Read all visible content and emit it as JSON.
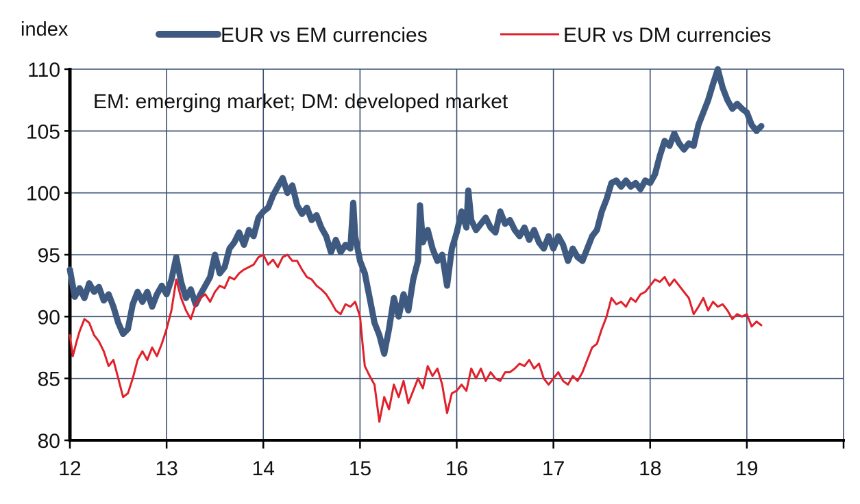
{
  "chart_data": {
    "type": "line",
    "ylabel": "index",
    "annotation": "EM: emerging market; DM: developed market",
    "ylim": [
      80,
      110
    ],
    "xlim": [
      2012.0,
      2020.0
    ],
    "y_ticks": [
      80,
      85,
      90,
      95,
      100,
      105,
      110
    ],
    "y_tick_labels": [
      "80",
      "85",
      "90",
      "95",
      "100",
      "105",
      "110"
    ],
    "x_ticks": [
      2012,
      2013,
      2014,
      2015,
      2016,
      2017,
      2018,
      2019
    ],
    "x_tick_labels": [
      "12",
      "13",
      "14",
      "15",
      "16",
      "17",
      "18",
      "19"
    ],
    "grid": true,
    "legend_position": "top",
    "series": [
      {
        "name": "EUR vs EM currencies",
        "color": "#3f5a80",
        "line_style": "thick",
        "points": [
          [
            2012.0,
            93.8
          ],
          [
            2012.05,
            91.6
          ],
          [
            2012.1,
            92.3
          ],
          [
            2012.15,
            91.5
          ],
          [
            2012.2,
            92.7
          ],
          [
            2012.25,
            92.0
          ],
          [
            2012.3,
            92.4
          ],
          [
            2012.35,
            91.3
          ],
          [
            2012.4,
            91.8
          ],
          [
            2012.45,
            90.8
          ],
          [
            2012.5,
            89.5
          ],
          [
            2012.55,
            88.6
          ],
          [
            2012.6,
            89.0
          ],
          [
            2012.65,
            91.0
          ],
          [
            2012.7,
            92.0
          ],
          [
            2012.75,
            91.2
          ],
          [
            2012.8,
            92.0
          ],
          [
            2012.85,
            90.8
          ],
          [
            2012.9,
            91.8
          ],
          [
            2012.95,
            92.5
          ],
          [
            2013.0,
            91.8
          ],
          [
            2013.05,
            93.0
          ],
          [
            2013.1,
            94.8
          ],
          [
            2013.15,
            92.8
          ],
          [
            2013.2,
            91.5
          ],
          [
            2013.25,
            92.2
          ],
          [
            2013.3,
            91.0
          ],
          [
            2013.35,
            91.8
          ],
          [
            2013.4,
            92.5
          ],
          [
            2013.45,
            93.2
          ],
          [
            2013.5,
            95.0
          ],
          [
            2013.55,
            93.5
          ],
          [
            2013.6,
            94.0
          ],
          [
            2013.65,
            95.5
          ],
          [
            2013.7,
            96.0
          ],
          [
            2013.75,
            96.8
          ],
          [
            2013.8,
            95.8
          ],
          [
            2013.85,
            97.0
          ],
          [
            2013.9,
            96.5
          ],
          [
            2013.95,
            98.0
          ],
          [
            2014.0,
            98.5
          ],
          [
            2014.05,
            98.8
          ],
          [
            2014.1,
            99.8
          ],
          [
            2014.15,
            100.5
          ],
          [
            2014.2,
            101.2
          ],
          [
            2014.25,
            100.0
          ],
          [
            2014.3,
            100.6
          ],
          [
            2014.35,
            99.0
          ],
          [
            2014.4,
            98.3
          ],
          [
            2014.45,
            98.8
          ],
          [
            2014.5,
            97.8
          ],
          [
            2014.55,
            98.2
          ],
          [
            2014.6,
            97.2
          ],
          [
            2014.65,
            96.5
          ],
          [
            2014.7,
            95.2
          ],
          [
            2014.75,
            96.2
          ],
          [
            2014.8,
            95.2
          ],
          [
            2014.85,
            95.8
          ],
          [
            2014.9,
            95.5
          ],
          [
            2014.93,
            99.2
          ],
          [
            2014.95,
            96.5
          ],
          [
            2015.0,
            94.5
          ],
          [
            2015.05,
            93.5
          ],
          [
            2015.1,
            91.5
          ],
          [
            2015.15,
            89.5
          ],
          [
            2015.2,
            88.5
          ],
          [
            2015.25,
            87.0
          ],
          [
            2015.3,
            89.0
          ],
          [
            2015.35,
            91.5
          ],
          [
            2015.4,
            90.0
          ],
          [
            2015.45,
            91.8
          ],
          [
            2015.5,
            90.5
          ],
          [
            2015.55,
            93.0
          ],
          [
            2015.6,
            94.5
          ],
          [
            2015.62,
            99.0
          ],
          [
            2015.65,
            96.0
          ],
          [
            2015.7,
            97.0
          ],
          [
            2015.75,
            95.5
          ],
          [
            2015.8,
            94.5
          ],
          [
            2015.85,
            95.0
          ],
          [
            2015.9,
            92.5
          ],
          [
            2015.95,
            95.5
          ],
          [
            2016.0,
            96.8
          ],
          [
            2016.05,
            98.5
          ],
          [
            2016.1,
            97.2
          ],
          [
            2016.12,
            100.2
          ],
          [
            2016.15,
            97.8
          ],
          [
            2016.2,
            97.0
          ],
          [
            2016.25,
            97.5
          ],
          [
            2016.3,
            98.0
          ],
          [
            2016.35,
            97.2
          ],
          [
            2016.4,
            96.8
          ],
          [
            2016.45,
            98.5
          ],
          [
            2016.5,
            97.5
          ],
          [
            2016.55,
            97.8
          ],
          [
            2016.6,
            97.0
          ],
          [
            2016.65,
            96.5
          ],
          [
            2016.7,
            97.2
          ],
          [
            2016.75,
            96.2
          ],
          [
            2016.8,
            97.0
          ],
          [
            2016.85,
            96.0
          ],
          [
            2016.9,
            95.5
          ],
          [
            2016.95,
            96.5
          ],
          [
            2017.0,
            95.5
          ],
          [
            2017.05,
            96.5
          ],
          [
            2017.1,
            95.8
          ],
          [
            2017.15,
            94.5
          ],
          [
            2017.2,
            95.5
          ],
          [
            2017.25,
            94.8
          ],
          [
            2017.3,
            94.5
          ],
          [
            2017.35,
            95.5
          ],
          [
            2017.4,
            96.5
          ],
          [
            2017.45,
            97.0
          ],
          [
            2017.5,
            98.5
          ],
          [
            2017.55,
            99.5
          ],
          [
            2017.6,
            100.8
          ],
          [
            2017.65,
            101.0
          ],
          [
            2017.7,
            100.5
          ],
          [
            2017.75,
            101.0
          ],
          [
            2017.8,
            100.5
          ],
          [
            2017.85,
            100.8
          ],
          [
            2017.9,
            100.3
          ],
          [
            2017.95,
            101.0
          ],
          [
            2018.0,
            100.8
          ],
          [
            2018.05,
            101.5
          ],
          [
            2018.1,
            103.0
          ],
          [
            2018.15,
            104.2
          ],
          [
            2018.2,
            103.8
          ],
          [
            2018.25,
            104.8
          ],
          [
            2018.3,
            104.0
          ],
          [
            2018.35,
            103.5
          ],
          [
            2018.4,
            104.0
          ],
          [
            2018.45,
            103.8
          ],
          [
            2018.5,
            105.5
          ],
          [
            2018.55,
            106.5
          ],
          [
            2018.6,
            107.5
          ],
          [
            2018.65,
            108.8
          ],
          [
            2018.7,
            110.0
          ],
          [
            2018.75,
            108.5
          ],
          [
            2018.8,
            107.5
          ],
          [
            2018.85,
            106.8
          ],
          [
            2018.9,
            107.2
          ],
          [
            2018.95,
            106.8
          ],
          [
            2019.0,
            106.5
          ],
          [
            2019.05,
            105.5
          ],
          [
            2019.1,
            105.0
          ],
          [
            2019.15,
            105.4
          ]
        ]
      },
      {
        "name": "EUR vs DM currencies",
        "color": "#e0202a",
        "line_style": "thin",
        "points": [
          [
            2012.0,
            88.5
          ],
          [
            2012.03,
            86.8
          ],
          [
            2012.07,
            88.0
          ],
          [
            2012.1,
            88.8
          ],
          [
            2012.15,
            89.8
          ],
          [
            2012.2,
            89.5
          ],
          [
            2012.25,
            88.5
          ],
          [
            2012.3,
            88.0
          ],
          [
            2012.35,
            87.2
          ],
          [
            2012.4,
            86.0
          ],
          [
            2012.45,
            86.5
          ],
          [
            2012.5,
            85.0
          ],
          [
            2012.55,
            83.5
          ],
          [
            2012.6,
            83.8
          ],
          [
            2012.65,
            85.0
          ],
          [
            2012.7,
            86.5
          ],
          [
            2012.75,
            87.2
          ],
          [
            2012.8,
            86.5
          ],
          [
            2012.85,
            87.5
          ],
          [
            2012.9,
            86.8
          ],
          [
            2012.95,
            87.8
          ],
          [
            2013.0,
            89.0
          ],
          [
            2013.05,
            90.5
          ],
          [
            2013.1,
            93.0
          ],
          [
            2013.15,
            91.5
          ],
          [
            2013.2,
            90.5
          ],
          [
            2013.25,
            89.8
          ],
          [
            2013.3,
            91.0
          ],
          [
            2013.35,
            91.5
          ],
          [
            2013.4,
            91.8
          ],
          [
            2013.45,
            91.2
          ],
          [
            2013.5,
            92.0
          ],
          [
            2013.55,
            92.5
          ],
          [
            2013.6,
            92.3
          ],
          [
            2013.65,
            93.2
          ],
          [
            2013.7,
            93.0
          ],
          [
            2013.75,
            93.5
          ],
          [
            2013.8,
            93.8
          ],
          [
            2013.85,
            94.0
          ],
          [
            2013.9,
            94.2
          ],
          [
            2013.95,
            94.8
          ],
          [
            2014.0,
            95.0
          ],
          [
            2014.05,
            94.2
          ],
          [
            2014.1,
            94.6
          ],
          [
            2014.15,
            94.0
          ],
          [
            2014.2,
            94.8
          ],
          [
            2014.25,
            95.0
          ],
          [
            2014.3,
            94.5
          ],
          [
            2014.35,
            94.5
          ],
          [
            2014.4,
            93.8
          ],
          [
            2014.45,
            93.2
          ],
          [
            2014.5,
            93.0
          ],
          [
            2014.55,
            92.5
          ],
          [
            2014.6,
            92.2
          ],
          [
            2014.65,
            91.8
          ],
          [
            2014.7,
            91.2
          ],
          [
            2014.75,
            90.5
          ],
          [
            2014.8,
            90.2
          ],
          [
            2014.85,
            91.0
          ],
          [
            2014.9,
            90.8
          ],
          [
            2014.95,
            91.2
          ],
          [
            2015.0,
            90.0
          ],
          [
            2015.03,
            87.5
          ],
          [
            2015.05,
            86.0
          ],
          [
            2015.1,
            85.2
          ],
          [
            2015.15,
            84.5
          ],
          [
            2015.2,
            81.5
          ],
          [
            2015.25,
            83.5
          ],
          [
            2015.3,
            82.5
          ],
          [
            2015.35,
            84.5
          ],
          [
            2015.4,
            83.5
          ],
          [
            2015.45,
            84.8
          ],
          [
            2015.5,
            83.0
          ],
          [
            2015.55,
            84.0
          ],
          [
            2015.6,
            85.0
          ],
          [
            2015.65,
            84.2
          ],
          [
            2015.7,
            86.0
          ],
          [
            2015.75,
            85.2
          ],
          [
            2015.8,
            85.8
          ],
          [
            2015.85,
            84.5
          ],
          [
            2015.9,
            82.2
          ],
          [
            2015.95,
            83.8
          ],
          [
            2016.0,
            84.0
          ],
          [
            2016.05,
            84.5
          ],
          [
            2016.1,
            84.0
          ],
          [
            2016.15,
            85.8
          ],
          [
            2016.2,
            85.0
          ],
          [
            2016.25,
            85.8
          ],
          [
            2016.3,
            84.8
          ],
          [
            2016.35,
            85.5
          ],
          [
            2016.4,
            85.0
          ],
          [
            2016.45,
            84.8
          ],
          [
            2016.5,
            85.5
          ],
          [
            2016.55,
            85.5
          ],
          [
            2016.6,
            85.8
          ],
          [
            2016.65,
            86.2
          ],
          [
            2016.7,
            86.0
          ],
          [
            2016.75,
            86.5
          ],
          [
            2016.8,
            85.8
          ],
          [
            2016.85,
            86.2
          ],
          [
            2016.9,
            85.0
          ],
          [
            2016.95,
            84.5
          ],
          [
            2017.0,
            85.0
          ],
          [
            2017.05,
            85.5
          ],
          [
            2017.1,
            84.8
          ],
          [
            2017.15,
            84.5
          ],
          [
            2017.2,
            85.2
          ],
          [
            2017.25,
            84.8
          ],
          [
            2017.3,
            85.5
          ],
          [
            2017.35,
            86.5
          ],
          [
            2017.4,
            87.5
          ],
          [
            2017.45,
            87.8
          ],
          [
            2017.5,
            89.0
          ],
          [
            2017.55,
            90.0
          ],
          [
            2017.6,
            91.5
          ],
          [
            2017.65,
            91.0
          ],
          [
            2017.7,
            91.2
          ],
          [
            2017.75,
            90.8
          ],
          [
            2017.8,
            91.5
          ],
          [
            2017.85,
            91.2
          ],
          [
            2017.9,
            91.8
          ],
          [
            2017.95,
            92.0
          ],
          [
            2018.0,
            92.5
          ],
          [
            2018.05,
            93.0
          ],
          [
            2018.1,
            92.8
          ],
          [
            2018.15,
            93.2
          ],
          [
            2018.2,
            92.5
          ],
          [
            2018.25,
            93.0
          ],
          [
            2018.3,
            92.5
          ],
          [
            2018.35,
            92.0
          ],
          [
            2018.4,
            91.5
          ],
          [
            2018.45,
            90.2
          ],
          [
            2018.5,
            90.8
          ],
          [
            2018.55,
            91.5
          ],
          [
            2018.6,
            90.5
          ],
          [
            2018.65,
            91.2
          ],
          [
            2018.7,
            90.8
          ],
          [
            2018.75,
            91.0
          ],
          [
            2018.8,
            90.5
          ],
          [
            2018.85,
            89.8
          ],
          [
            2018.9,
            90.2
          ],
          [
            2018.95,
            90.0
          ],
          [
            2019.0,
            90.2
          ],
          [
            2019.05,
            89.2
          ],
          [
            2019.1,
            89.6
          ],
          [
            2019.15,
            89.3
          ]
        ]
      }
    ]
  }
}
